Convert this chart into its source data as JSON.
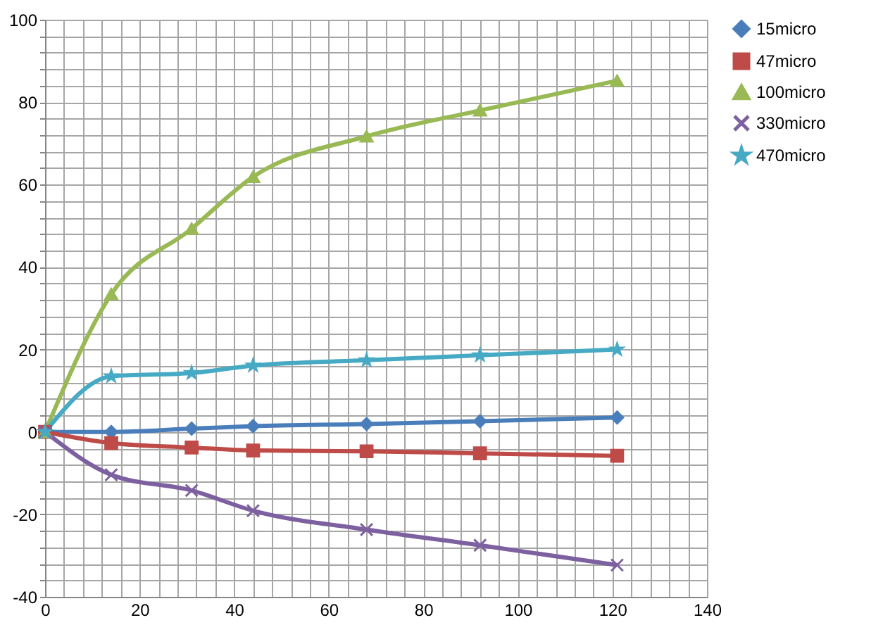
{
  "chart_data": {
    "type": "line",
    "x": [
      0,
      14,
      31,
      44,
      68,
      92,
      121
    ],
    "series": [
      {
        "name": "15micro",
        "color": "#4a7ebb",
        "marker": "diamond",
        "values": [
          0,
          0,
          0.8,
          1.4,
          1.9,
          2.6,
          3.5
        ]
      },
      {
        "name": "47micro",
        "color": "#be4b48",
        "marker": "square",
        "values": [
          0,
          -2.7,
          -3.8,
          -4.5,
          -4.7,
          -5.2,
          -5.8
        ]
      },
      {
        "name": "100micro",
        "color": "#98b954",
        "marker": "triangle",
        "values": [
          0,
          33.4,
          49.3,
          61.9,
          71.7,
          78,
          85.2
        ]
      },
      {
        "name": "330micro",
        "color": "#7d60a0",
        "marker": "cross",
        "values": [
          0,
          -10.4,
          -14.2,
          -19.1,
          -23.7,
          -27.5,
          -32.3
        ]
      },
      {
        "name": "470micro",
        "color": "#46aac5",
        "marker": "star",
        "values": [
          0,
          13.5,
          14.3,
          16.1,
          17.4,
          18.6,
          20
        ]
      }
    ],
    "xlim": [
      0,
      140
    ],
    "xticks": [
      0,
      {
        "value": 4,
        "label": null
      },
      {
        "value": 8,
        "label": null
      },
      {
        "value": 12,
        "label": null
      },
      {
        "value": 16,
        "label": null
      },
      20,
      {
        "value": 24,
        "label": null
      },
      {
        "value": 28,
        "label": null
      },
      {
        "value": 32,
        "label": null
      },
      {
        "value": 36,
        "label": null
      },
      40,
      {
        "value": 44,
        "label": null
      },
      {
        "value": 48,
        "label": null
      },
      {
        "value": 52,
        "label": null
      },
      {
        "value": 56,
        "label": null
      },
      60,
      {
        "value": 64,
        "label": null
      },
      {
        "value": 68,
        "label": null
      },
      {
        "value": 72,
        "label": null
      },
      {
        "value": 76,
        "label": null
      },
      80,
      {
        "value": 84,
        "label": null
      },
      {
        "value": 88,
        "label": null
      },
      {
        "value": 92,
        "label": null
      },
      {
        "value": 96,
        "label": null
      },
      100,
      {
        "value": 104,
        "label": null
      },
      {
        "value": 108,
        "label": null
      },
      {
        "value": 112,
        "label": null
      },
      {
        "value": 116,
        "label": null
      },
      120,
      {
        "value": 124,
        "label": null
      },
      {
        "value": 128,
        "label": null
      },
      {
        "value": 132,
        "label": null
      },
      {
        "value": 136,
        "label": null
      },
      140
    ],
    "ylim": [
      -40,
      100
    ],
    "yticks": [
      -40,
      {
        "value": -36,
        "label": null
      },
      {
        "value": -32,
        "label": null
      },
      {
        "value": -28,
        "label": null
      },
      {
        "value": -24,
        "label": null
      },
      -20,
      {
        "value": -16,
        "label": null
      },
      {
        "value": -12,
        "label": null
      },
      {
        "value": -8,
        "label": null
      },
      {
        "value": -4,
        "label": null
      },
      0,
      {
        "value": 4,
        "label": null
      },
      {
        "value": 8,
        "label": null
      },
      {
        "value": 12,
        "label": null
      },
      {
        "value": 16,
        "label": null
      },
      20,
      {
        "value": 24,
        "label": null
      },
      {
        "value": 28,
        "label": null
      },
      {
        "value": 32,
        "label": null
      },
      {
        "value": 36,
        "label": null
      },
      40,
      {
        "value": 44,
        "label": null
      },
      {
        "value": 48,
        "label": null
      },
      {
        "value": 52,
        "label": null
      },
      {
        "value": 56,
        "label": null
      },
      60,
      {
        "value": 64,
        "label": null
      },
      {
        "value": 68,
        "label": null
      },
      {
        "value": 72,
        "label": null
      },
      {
        "value": 76,
        "label": null
      },
      80,
      {
        "value": 84,
        "label": null
      },
      {
        "value": 88,
        "label": null
      },
      {
        "value": 92,
        "label": null
      },
      {
        "value": 96,
        "label": null
      },
      100
    ],
    "grid": true,
    "legend": "right",
    "line_style": "solid"
  }
}
